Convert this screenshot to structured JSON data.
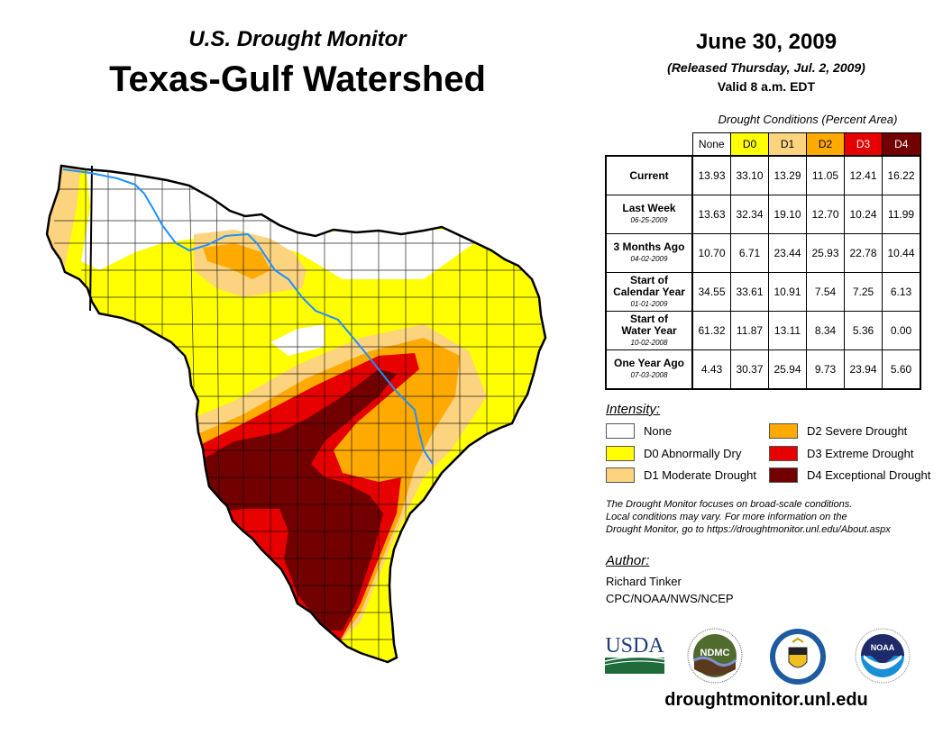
{
  "header": {
    "subtitle": "U.S. Drought Monitor",
    "title": "Texas-Gulf Watershed",
    "date": "June 30, 2009",
    "released": "(Released Thursday, Jul. 2, 2009)",
    "valid": "Valid 8 a.m. EDT"
  },
  "table": {
    "caption": "Drought Conditions (Percent Area)",
    "columns": [
      {
        "label": "None",
        "color": "#ffffff",
        "text_color": "#000000"
      },
      {
        "label": "D0",
        "color": "#ffff00",
        "text_color": "#000000"
      },
      {
        "label": "D1",
        "color": "#fcd37f",
        "text_color": "#000000"
      },
      {
        "label": "D2",
        "color": "#ffaa00",
        "text_color": "#000000"
      },
      {
        "label": "D3",
        "color": "#e60000",
        "text_color": "#ffffff"
      },
      {
        "label": "D4",
        "color": "#730000",
        "text_color": "#ffffff"
      }
    ],
    "rows": [
      {
        "label": "Current",
        "label2": "",
        "date": "",
        "values": [
          "13.93",
          "33.10",
          "13.29",
          "11.05",
          "12.41",
          "16.22"
        ]
      },
      {
        "label": "Last Week",
        "label2": "",
        "date": "06-25-2009",
        "values": [
          "13.63",
          "32.34",
          "19.10",
          "12.70",
          "10.24",
          "11.99"
        ]
      },
      {
        "label": "3 Months Ago",
        "label2": "",
        "date": "04-02-2009",
        "values": [
          "10.70",
          "6.71",
          "23.44",
          "25.93",
          "22.78",
          "10.44"
        ]
      },
      {
        "label": "Start of",
        "label2": "Calendar Year",
        "date": "01-01-2009",
        "values": [
          "34.55",
          "33.61",
          "10.91",
          "7.54",
          "7.25",
          "6.13"
        ]
      },
      {
        "label": "Start of",
        "label2": "Water Year",
        "date": "10-02-2008",
        "values": [
          "61.32",
          "11.87",
          "13.11",
          "8.34",
          "5.36",
          "0.00"
        ]
      },
      {
        "label": "One Year Ago",
        "label2": "",
        "date": "07-03-2008",
        "values": [
          "4.43",
          "30.37",
          "25.94",
          "9.73",
          "23.94",
          "5.60"
        ]
      }
    ]
  },
  "legend": {
    "title": "Intensity:",
    "items": [
      {
        "label": "None",
        "color": "#ffffff"
      },
      {
        "label": "D0 Abnormally Dry",
        "color": "#ffff00"
      },
      {
        "label": "D1 Moderate Drought",
        "color": "#fcd37f"
      },
      {
        "label": "D2 Severe Drought",
        "color": "#ffaa00"
      },
      {
        "label": "D3 Extreme Drought",
        "color": "#e60000"
      },
      {
        "label": "D4 Exceptional Drought",
        "color": "#730000"
      }
    ]
  },
  "note": {
    "line1": "The Drought Monitor focuses on broad-scale conditions.",
    "line2": "Local conditions may vary. For more information on the",
    "line3": "Drought Monitor, go to https://droughtmonitor.unl.edu/About.aspx"
  },
  "author": {
    "title": "Author:",
    "name": "Richard Tinker",
    "org": "CPC/NOAA/NWS/NCEP"
  },
  "logos": [
    {
      "name": "USDA",
      "text": "USDA"
    },
    {
      "name": "NDMC",
      "text": "NDMC"
    },
    {
      "name": "Department of Commerce",
      "text": ""
    },
    {
      "name": "NOAA",
      "text": "NOAA"
    }
  ],
  "footer": {
    "site": "droughtmonitor.unl.edu"
  },
  "map": {
    "river_color": "#1e90ff"
  }
}
